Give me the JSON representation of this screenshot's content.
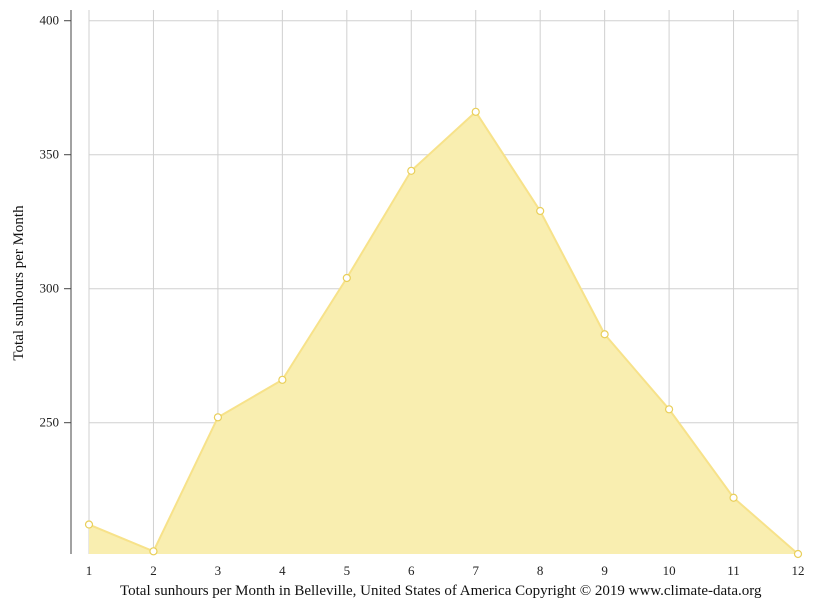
{
  "chart_data": {
    "type": "area",
    "x": [
      1,
      2,
      3,
      4,
      5,
      6,
      7,
      8,
      9,
      10,
      11,
      12
    ],
    "series": [
      {
        "values": [
          212,
          202,
          252,
          266,
          304,
          344,
          366,
          329,
          283,
          255,
          222,
          201
        ]
      }
    ],
    "ylabel": "Total sunhours per Month",
    "xlabel": "Total sunhours per Month in Belleville, United States of America Copyright © 2019 www.climate-data.org",
    "yticks": [
      250,
      300,
      350,
      400
    ],
    "ylim": [
      201,
      404
    ],
    "xlim": [
      1,
      12
    ],
    "grid": true,
    "colors": {
      "fill": "#f9eeb0",
      "line": "#f7e28a",
      "marker_stroke": "#e9cf5a",
      "grid": "#d0d0d0",
      "axis": "#444444"
    }
  }
}
